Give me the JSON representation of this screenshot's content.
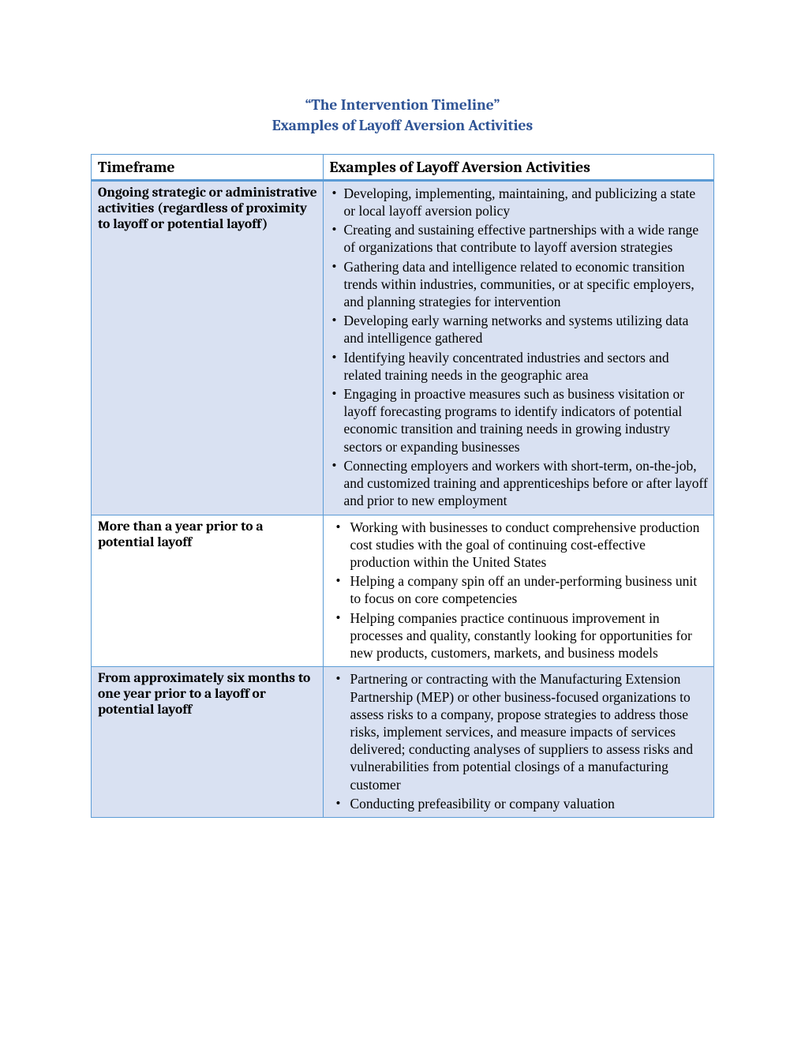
{
  "colors": {
    "heading": "#2f5496",
    "table_border": "#5b9bd5",
    "stripe_bg": "#d9e1f2",
    "page_bg": "#ffffff",
    "body_text": "#000000"
  },
  "title": {
    "line1": "“The Intervention Timeline”",
    "line2": "Examples of Layoff Aversion Activities"
  },
  "table": {
    "headers": {
      "col1": "Timeframe",
      "col2": "Examples of Layoff Aversion Activities"
    },
    "rows": [
      {
        "timeframe": "Ongoing strategic or administrative activities (regardless of proximity to layoff or potential layoff)",
        "striped": true,
        "bullet_style": "tight",
        "activities": [
          "Developing, implementing, maintaining, and publicizing a state or local layoff aversion policy",
          "Creating and sustaining effective partnerships with a wide range of organizations that contribute to layoff aversion strategies",
          "Gathering data and intelligence related to economic transition trends within industries, communities, or at specific employers, and planning strategies for intervention",
          "Developing early warning networks and systems utilizing data and intelligence gathered",
          "Identifying heavily concentrated industries and sectors and related training needs in the geographic area",
          "Engaging in proactive measures such as business visitation or layoff forecasting programs to identify indicators of potential economic transition and training needs in growing industry sectors or expanding businesses",
          "Connecting employers and workers with short-term, on-the-job, and customized training and apprenticeships before or after layoff and prior to new employment"
        ]
      },
      {
        "timeframe": "More than a year prior to a potential layoff",
        "striped": false,
        "bullet_style": "normal",
        "activities": [
          "Working with businesses to conduct comprehensive production cost studies with the goal of continuing cost-effective production within the United States",
          "Helping a company spin off an under-performing business unit to focus on core competencies",
          "Helping companies practice continuous improvement in processes and quality, constantly looking for opportunities for new products, customers, markets, and business models"
        ]
      },
      {
        "timeframe": "From approximately six months to one year prior to a layoff or potential layoff",
        "striped": true,
        "bullet_style": "normal",
        "activities": [
          "Partnering or contracting with the Manufacturing Extension Partnership (MEP) or other business-focused organizations to assess risks to a company, propose strategies to address those risks, implement services, and measure impacts of services delivered; conducting analyses of suppliers to assess risks and vulnerabilities from potential closings of a manufacturing customer",
          "Conducting prefeasibility or company valuation"
        ]
      }
    ]
  }
}
